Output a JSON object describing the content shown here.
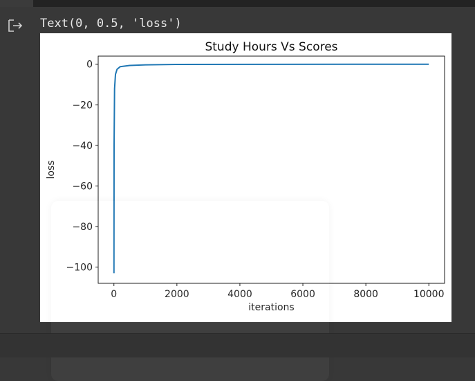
{
  "output": {
    "text": "Text(0, 0.5, 'loss')",
    "icon": "output-arrow-icon"
  },
  "chart_data": {
    "type": "line",
    "title": "Study Hours Vs Scores",
    "xlabel": "iterations",
    "ylabel": "loss",
    "xlim": [
      -500,
      10500
    ],
    "ylim": [
      -108,
      4
    ],
    "xticks": [
      0,
      2000,
      4000,
      6000,
      8000,
      10000
    ],
    "xtick_labels": [
      "0",
      "2000",
      "4000",
      "6000",
      "8000",
      "10000"
    ],
    "yticks": [
      0,
      -20,
      -40,
      -60,
      -80,
      -100
    ],
    "ytick_labels": [
      "0",
      "−20",
      "−40",
      "−60",
      "−80",
      "−100"
    ],
    "grid": false,
    "series": [
      {
        "color": "#1f77b4",
        "x": [
          0,
          5,
          20,
          50,
          100,
          200,
          500,
          1000,
          2000,
          5000,
          10000
        ],
        "y": [
          -103,
          -40,
          -12,
          -5,
          -2.5,
          -1.2,
          -0.6,
          -0.3,
          -0.1,
          -0.05,
          0
        ]
      }
    ]
  }
}
